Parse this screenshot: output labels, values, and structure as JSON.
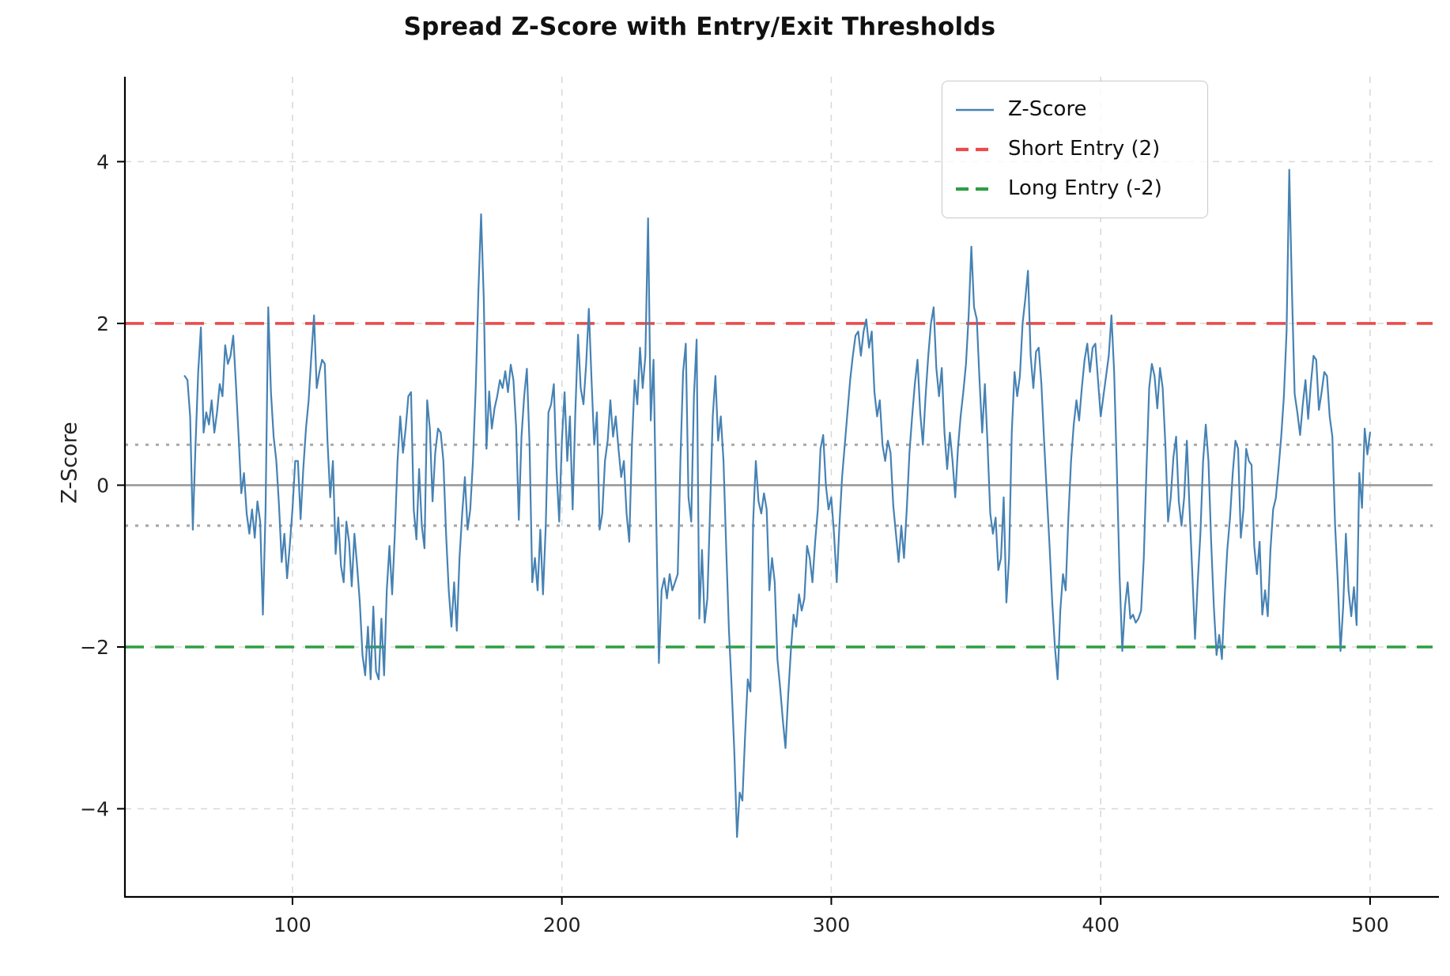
{
  "title": "Spread Z-Score with Entry/Exit Thresholds",
  "ylabel": "Z-Score",
  "legend": {
    "items": [
      {
        "label": "Z-Score",
        "icon": "solid-line",
        "color": "#4682b4"
      },
      {
        "label": "Short Entry (2)",
        "icon": "dashed-line",
        "color": "#e94b4b"
      },
      {
        "label": "Long Entry (-2)",
        "icon": "dashed-line",
        "color": "#2f9e44"
      }
    ]
  },
  "chart_data": {
    "type": "line",
    "title": "Spread Z-Score with Entry/Exit Thresholds",
    "xlabel": "",
    "ylabel": "Z-Score",
    "xticks": [
      100,
      200,
      300,
      400,
      500
    ],
    "yticks": [
      -4,
      -2,
      0,
      2,
      4
    ],
    "xlim": [
      37.8,
      523.2
    ],
    "ylim": [
      -5.09,
      5.05
    ],
    "grid": true,
    "legend_position": "upper right",
    "thresholds": [
      {
        "name": "Short Entry",
        "value": 2,
        "color": "#e94b4b",
        "style": "dashed",
        "width": 3.6
      },
      {
        "name": "Long Entry",
        "value": -2,
        "color": "#2f9e44",
        "style": "dashed",
        "width": 3.6
      },
      {
        "name": "exit-upper",
        "value": 0.5,
        "color": "#ababab",
        "style": "dotted",
        "width": 3.2
      },
      {
        "name": "exit-lower",
        "value": -0.5,
        "color": "#ababab",
        "style": "dotted",
        "width": 3.2
      },
      {
        "name": "zero-line",
        "value": 0,
        "color": "#9a9a9a",
        "style": "solid",
        "width": 2.6
      }
    ],
    "series": [
      {
        "name": "Z-Score",
        "color": "#4682b4",
        "x_start": 60,
        "x_step": 1,
        "values": [
          1.35,
          1.3,
          0.85,
          -0.55,
          0.5,
          1.4,
          1.95,
          0.65,
          0.9,
          0.75,
          1.05,
          0.65,
          0.9,
          1.25,
          1.1,
          1.73,
          1.5,
          1.6,
          1.85,
          1.25,
          0.6,
          -0.1,
          0.15,
          -0.35,
          -0.6,
          -0.3,
          -0.65,
          -0.2,
          -0.45,
          -1.6,
          -0.3,
          2.2,
          1.15,
          0.6,
          0.3,
          -0.25,
          -0.95,
          -0.6,
          -1.15,
          -0.75,
          -0.3,
          0.3,
          0.3,
          -0.42,
          0.2,
          0.7,
          1.05,
          1.6,
          2.1,
          1.2,
          1.4,
          1.55,
          1.5,
          0.55,
          -0.15,
          0.3,
          -0.85,
          -0.4,
          -1.0,
          -1.2,
          -0.45,
          -0.7,
          -1.25,
          -0.6,
          -1.0,
          -1.45,
          -2.1,
          -2.35,
          -1.75,
          -2.4,
          -1.5,
          -2.3,
          -2.4,
          -1.65,
          -2.35,
          -1.3,
          -0.75,
          -1.35,
          -0.6,
          0.3,
          0.85,
          0.4,
          0.7,
          1.1,
          1.15,
          -0.3,
          -0.67,
          0.2,
          -0.5,
          -0.78,
          1.05,
          0.7,
          -0.2,
          0.4,
          0.7,
          0.65,
          0.3,
          -0.6,
          -1.3,
          -1.75,
          -1.2,
          -1.8,
          -0.9,
          -0.35,
          0.1,
          -0.55,
          -0.3,
          0.3,
          1.2,
          2.4,
          3.35,
          2.3,
          0.45,
          1.16,
          0.7,
          0.95,
          1.1,
          1.3,
          1.2,
          1.41,
          1.15,
          1.49,
          1.3,
          0.72,
          -0.43,
          0.6,
          1.1,
          1.44,
          0.5,
          -1.2,
          -0.9,
          -1.3,
          -0.55,
          -1.35,
          -0.5,
          0.9,
          1.0,
          1.25,
          0.2,
          -0.45,
          0.55,
          1.15,
          0.3,
          0.85,
          -0.3,
          0.9,
          1.86,
          1.2,
          1.0,
          1.5,
          2.18,
          1.3,
          0.5,
          0.9,
          -0.55,
          -0.35,
          0.3,
          0.55,
          1.05,
          0.6,
          0.85,
          0.45,
          0.1,
          0.3,
          -0.35,
          -0.7,
          0.5,
          1.3,
          1.0,
          1.7,
          1.2,
          1.6,
          3.3,
          0.8,
          1.55,
          -0.4,
          -2.2,
          -1.3,
          -1.15,
          -1.4,
          -1.1,
          -1.3,
          -1.2,
          -1.1,
          0.3,
          1.4,
          1.75,
          -0.15,
          -0.45,
          1.1,
          1.8,
          -1.65,
          -0.8,
          -1.7,
          -1.4,
          -0.3,
          0.85,
          1.35,
          0.55,
          0.85,
          0.3,
          -0.8,
          -1.8,
          -2.5,
          -3.3,
          -4.35,
          -3.8,
          -3.9,
          -3.1,
          -2.4,
          -2.55,
          -0.45,
          0.3,
          -0.2,
          -0.35,
          -0.1,
          -0.3,
          -1.3,
          -0.9,
          -1.2,
          -2.15,
          -2.5,
          -2.9,
          -3.25,
          -2.6,
          -2.05,
          -1.6,
          -1.75,
          -1.35,
          -1.55,
          -1.4,
          -0.75,
          -0.9,
          -1.2,
          -0.7,
          -0.3,
          0.45,
          0.62,
          0.0,
          -0.3,
          -0.15,
          -0.6,
          -1.2,
          -0.5,
          0.1,
          0.5,
          0.9,
          1.3,
          1.6,
          1.85,
          1.9,
          1.6,
          1.9,
          2.05,
          1.7,
          1.9,
          1.15,
          0.85,
          1.05,
          0.5,
          0.3,
          0.55,
          0.4,
          -0.25,
          -0.6,
          -0.95,
          -0.5,
          -0.9,
          -0.3,
          0.4,
          0.85,
          1.25,
          1.55,
          0.9,
          0.5,
          1.1,
          1.6,
          2.0,
          2.2,
          1.45,
          1.1,
          1.45,
          0.65,
          0.2,
          0.65,
          0.3,
          -0.15,
          0.45,
          0.85,
          1.15,
          1.5,
          2.1,
          2.95,
          2.2,
          2.05,
          1.3,
          0.65,
          1.25,
          0.5,
          -0.35,
          -0.6,
          -0.4,
          -1.05,
          -0.9,
          -0.15,
          -1.45,
          -0.9,
          0.65,
          1.4,
          1.1,
          1.35,
          2.0,
          2.3,
          2.65,
          1.6,
          1.2,
          1.65,
          1.7,
          1.25,
          0.55,
          -0.1,
          -0.75,
          -1.45,
          -2.0,
          -2.4,
          -1.55,
          -1.1,
          -1.3,
          -0.4,
          0.3,
          0.75,
          1.05,
          0.8,
          1.2,
          1.55,
          1.75,
          1.4,
          1.7,
          1.75,
          1.3,
          0.85,
          1.1,
          1.35,
          1.6,
          2.1,
          1.4,
          0.2,
          -1.1,
          -2.05,
          -1.5,
          -1.2,
          -1.65,
          -1.6,
          -1.7,
          -1.65,
          -1.55,
          -0.9,
          0.2,
          1.2,
          1.5,
          1.35,
          0.95,
          1.45,
          1.2,
          0.5,
          -0.45,
          -0.15,
          0.35,
          0.6,
          -0.2,
          -0.5,
          -0.15,
          0.55,
          -0.3,
          -1.1,
          -1.9,
          -1.2,
          -0.6,
          0.3,
          0.75,
          0.3,
          -0.7,
          -1.5,
          -2.1,
          -1.85,
          -2.15,
          -1.4,
          -0.8,
          -0.4,
          0.15,
          0.55,
          0.45,
          -0.65,
          -0.3,
          0.45,
          0.3,
          0.25,
          -0.75,
          -1.1,
          -0.7,
          -1.6,
          -1.3,
          -1.62,
          -0.8,
          -0.3,
          -0.16,
          0.2,
          0.6,
          1.1,
          1.9,
          3.9,
          2.4,
          1.13,
          0.9,
          0.62,
          1.0,
          1.3,
          0.82,
          1.25,
          1.6,
          1.55,
          0.93,
          1.15,
          1.4,
          1.35,
          0.85,
          0.6,
          -0.48,
          -1.2,
          -2.05,
          -1.5,
          -0.6,
          -1.3,
          -1.62,
          -1.26,
          -1.73,
          0.15,
          -0.28,
          0.7,
          0.38,
          0.65
        ]
      }
    ]
  }
}
